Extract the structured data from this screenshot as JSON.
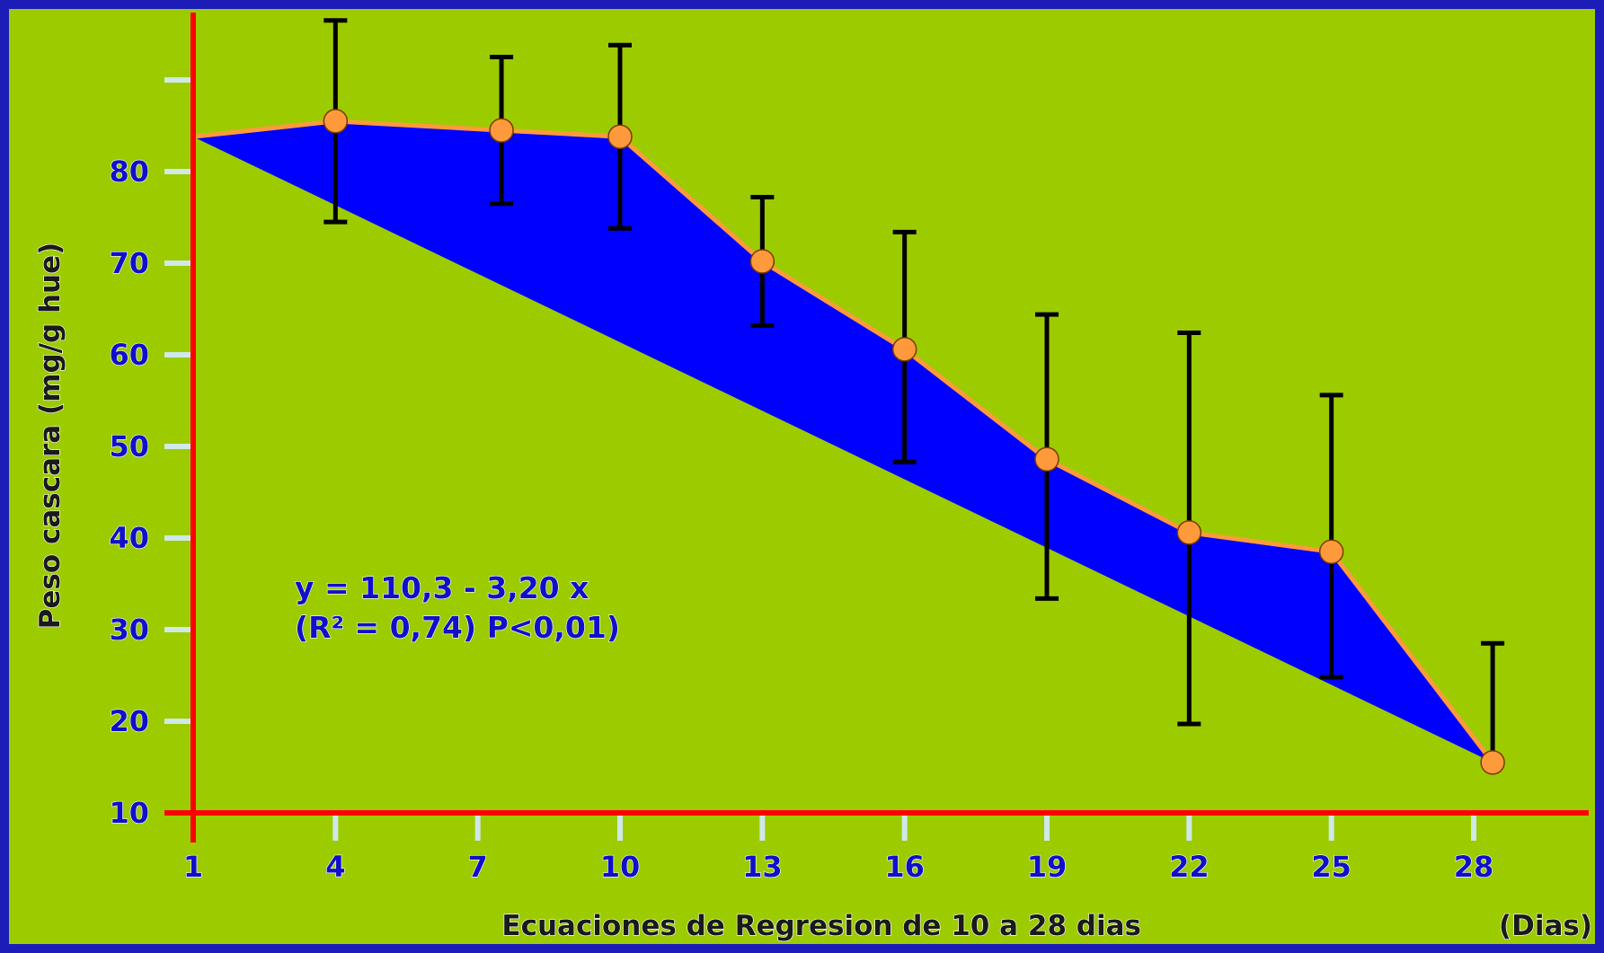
{
  "chart_data": {
    "type": "area",
    "x_label": "Ecuaciones de Regresion de 10 a 28 dias",
    "x_unit": "(Dias)",
    "y_label": "Peso  cascara (mg/g hue)",
    "x_ticks": [
      "1",
      "4",
      "7",
      "10",
      "13",
      "16",
      "19",
      "22",
      "25",
      "28"
    ],
    "y_ticks": [
      "10",
      "20",
      "30",
      "40",
      "50",
      "60",
      "70",
      "80"
    ],
    "ylim": [
      10,
      90
    ],
    "xlim": [
      1,
      28
    ],
    "series": [
      {
        "role": "observed",
        "points": [
          {
            "x": 4,
            "y": 85.5,
            "err_low": 74.5,
            "err_high": 96.5
          },
          {
            "x": 7.5,
            "y": 84.5,
            "err_low": 76.5,
            "err_high": 92.5
          },
          {
            "x": 10,
            "y": 83.8,
            "err_low": 73.8,
            "err_high": 93.8
          },
          {
            "x": 13,
            "y": 70.2,
            "err_low": 63.2,
            "err_high": 77.2
          },
          {
            "x": 16,
            "y": 60.6,
            "err_low": 48.3,
            "err_high": 73.4
          },
          {
            "x": 19,
            "y": 48.6,
            "err_low": 33.4,
            "err_high": 64.4
          },
          {
            "x": 22,
            "y": 40.6,
            "err_low": 19.7,
            "err_high": 62.4
          },
          {
            "x": 25,
            "y": 38.5,
            "err_low": 24.8,
            "err_high": 55.6
          },
          {
            "x": 28.4,
            "y": 15.5,
            "err_low": 15.5,
            "err_high": 28.5
          }
        ]
      },
      {
        "role": "regression",
        "points": [
          {
            "x": 1,
            "y": 83.8
          },
          {
            "x": 28.4,
            "y": 15.5
          }
        ]
      }
    ],
    "annotations": [
      "y = 110,3 - 3,20 x",
      "(R² = 0,74) P<0,01)"
    ],
    "colors": {
      "background": "#9ccb00",
      "border": "#1c1cb8",
      "fill": "#0000ff",
      "line": "#ff9a3c",
      "marker": "#ff9a3c",
      "error_bar": "#000000",
      "axis": "#ff0000",
      "tick": "#cfe8e8",
      "text": "#1010c8"
    }
  }
}
